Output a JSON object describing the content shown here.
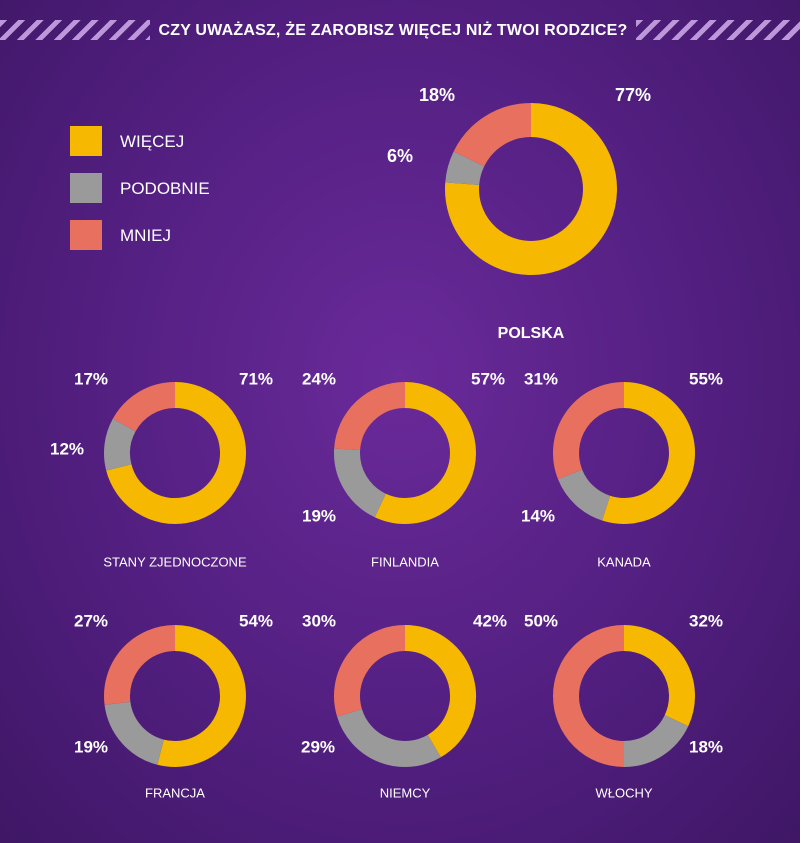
{
  "header": {
    "title": "CZY UWAŻASZ, ŻE ZAROBISZ WIĘCEJ NIŻ TWOI RODZICE?"
  },
  "legend": [
    {
      "label": "WIĘCEJ",
      "color": "#f6b800"
    },
    {
      "label": "PODOBNIE",
      "color": "#9a9a9a"
    },
    {
      "label": "MNIEJ",
      "color": "#e8705e"
    }
  ],
  "chart_data": [
    {
      "type": "pie",
      "title": "POLSKA",
      "categories": [
        "WIĘCEJ",
        "PODOBNIE",
        "MNIEJ"
      ],
      "values": [
        77,
        6,
        18
      ],
      "labels": [
        "77%",
        "6%",
        "18%"
      ]
    },
    {
      "type": "pie",
      "title": "STANY ZJEDNOCZONE",
      "categories": [
        "WIĘCEJ",
        "PODOBNIE",
        "MNIEJ"
      ],
      "values": [
        71,
        12,
        17
      ],
      "labels": [
        "71%",
        "12%",
        "17%"
      ]
    },
    {
      "type": "pie",
      "title": "FINLANDIA",
      "categories": [
        "WIĘCEJ",
        "PODOBNIE",
        "MNIEJ"
      ],
      "values": [
        57,
        19,
        24
      ],
      "labels": [
        "57%",
        "19%",
        "24%"
      ]
    },
    {
      "type": "pie",
      "title": "KANADA",
      "categories": [
        "WIĘCEJ",
        "PODOBNIE",
        "MNIEJ"
      ],
      "values": [
        55,
        14,
        31
      ],
      "labels": [
        "55%",
        "14%",
        "31%"
      ]
    },
    {
      "type": "pie",
      "title": "FRANCJA",
      "categories": [
        "WIĘCEJ",
        "PODOBNIE",
        "MNIEJ"
      ],
      "values": [
        54,
        19,
        27
      ],
      "labels": [
        "54%",
        "19%",
        "27%"
      ]
    },
    {
      "type": "pie",
      "title": "NIEMCY",
      "categories": [
        "WIĘCEJ",
        "PODOBNIE",
        "MNIEJ"
      ],
      "values": [
        42,
        29,
        30
      ],
      "labels": [
        "42%",
        "29%",
        "30%"
      ]
    },
    {
      "type": "pie",
      "title": "WŁOCHY",
      "categories": [
        "WIĘCEJ",
        "PODOBNIE",
        "MNIEJ"
      ],
      "values": [
        32,
        18,
        50
      ],
      "labels": [
        "32%",
        "18%",
        "50%"
      ]
    }
  ]
}
